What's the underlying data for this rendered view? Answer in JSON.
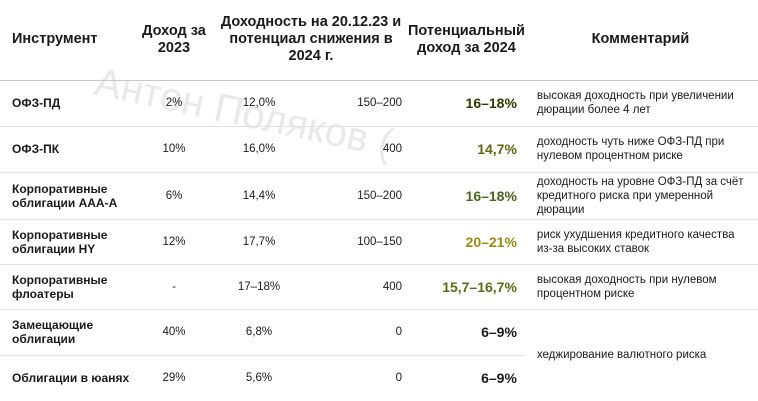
{
  "watermark": "Антон Поляков (",
  "headers": {
    "instrument": "Инструмент",
    "income_2023": "Доход за 2023",
    "yield": "Доходность на 20.12.23 и потенциал снижения в 2024 г.",
    "potential": "Потенциальный доход за 2024",
    "comment": "Комментарий"
  },
  "rows": [
    {
      "name": "ОФЗ-ПД",
      "income": "2%",
      "yield": "12,0%",
      "drop": "150–200",
      "potential": "16–18%",
      "potential_color": "#2f3b00",
      "comment": "высокая доходность при увеличении дюрации более 4 лет"
    },
    {
      "name": "ОФЗ-ПК",
      "income": "10%",
      "yield": "16,0%",
      "drop": "400",
      "potential": "14,7%",
      "potential_color": "#5e6a12",
      "comment": "доходность чуть ниже ОФЗ-ПД при нулевом процентном риске"
    },
    {
      "name": "Корпоративные облигации ААА-А",
      "income": "6%",
      "yield": "14,4%",
      "drop": "150–200",
      "potential": "16–18%",
      "potential_color": "#4b6420",
      "comment": "доходность на уровне ОФЗ-ПД за счёт кредитного риска при умеренной дюрации"
    },
    {
      "name": "Корпоративные облигации HY",
      "income": "12%",
      "yield": "17,7%",
      "drop": "100–150",
      "potential": "20–21%",
      "potential_color": "#9a8a14",
      "comment": "риск ухудшения кредитного качества из-за высоких ставок"
    },
    {
      "name": "Корпоративные флоатеры",
      "income": "-",
      "yield": "17–18%",
      "drop": "400",
      "potential": "15,7–16,7%",
      "potential_color": "#5a6a18",
      "comment": "высокая доходность при нулевом процентном риске"
    },
    {
      "name": "Замещающие облигации",
      "income": "40%",
      "yield": "6,8%",
      "drop": "0",
      "potential": "6–9%",
      "potential_color": "#1a1a1a",
      "comment": "хеджирование валютного риска"
    },
    {
      "name": "Облигации в юанях",
      "income": "29%",
      "yield": "5,6%",
      "drop": "0",
      "potential": "6–9%",
      "potential_color": "#1a1a1a"
    }
  ]
}
